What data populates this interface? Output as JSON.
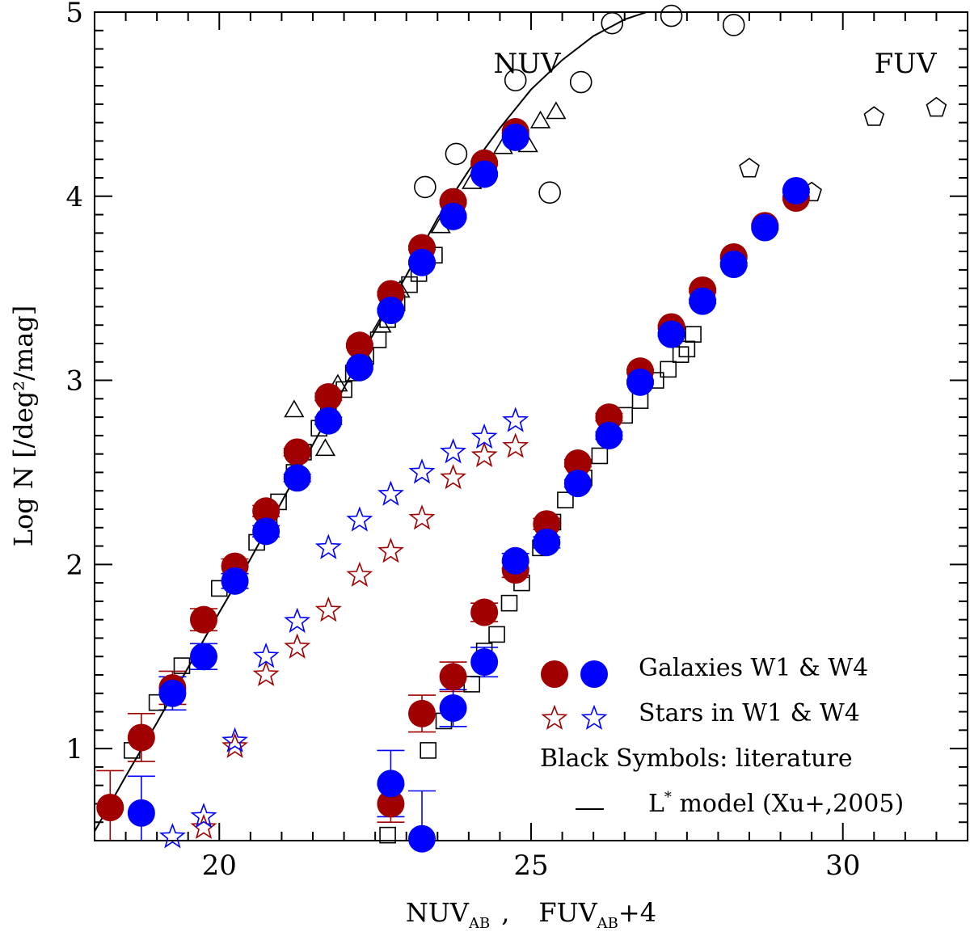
{
  "chart_data": {
    "type": "scatter",
    "title": "",
    "panel_labels": {
      "nuv": "NUV",
      "fuv": "FUV"
    },
    "xlabel": "NUV_AB , FUV_AB+4",
    "xlabel_parts": {
      "nuv": "NUV",
      "sub1": "AB",
      "sep": ",",
      "fuv": "FUV",
      "sub2": "AB",
      "offset": "+4"
    },
    "ylabel": "Log N [/deg²/mag]",
    "xlim": [
      18,
      32
    ],
    "ylim": [
      0.5,
      5
    ],
    "xticks": [
      20,
      25,
      30
    ],
    "yticks": [
      1,
      2,
      3,
      4,
      5
    ],
    "legend": {
      "position": "bottom-right",
      "entries": [
        {
          "label": "Galaxies W1 & W4",
          "symbol": "filled-circle",
          "colors": [
            "#a00000",
            "#0000ff"
          ]
        },
        {
          "label": "Stars in W1 & W4",
          "symbol": "open-star",
          "colors": [
            "#a00000",
            "#0000ff"
          ]
        },
        {
          "label": "Black Symbols: literature",
          "symbol": "none"
        },
        {
          "label": "L* model (Xu+,2005)",
          "symbol": "line",
          "label_main": "L",
          "label_sup": "*",
          "label_rest": " model (Xu+,2005)"
        }
      ]
    },
    "colors": {
      "red": "#a00000",
      "blue": "#0000ff",
      "black": "#000000"
    },
    "series": [
      {
        "name": "Galaxies W1 NUV",
        "marker": "filled-circle",
        "color": "#a00000",
        "points": [
          [
            18.25,
            0.68
          ],
          [
            18.75,
            1.06
          ],
          [
            19.25,
            1.33
          ],
          [
            19.75,
            1.7
          ],
          [
            20.25,
            1.99
          ],
          [
            20.75,
            2.29
          ],
          [
            21.25,
            2.61
          ],
          [
            21.75,
            2.91
          ],
          [
            22.25,
            3.19
          ],
          [
            22.75,
            3.47
          ],
          [
            23.25,
            3.72
          ],
          [
            23.75,
            3.97
          ],
          [
            24.25,
            4.18
          ],
          [
            24.75,
            4.35
          ]
        ],
        "yerr": [
          0.2,
          0.13,
          0.09,
          0.06,
          0.04,
          0.03,
          0.02,
          0.02,
          0.01,
          0.01,
          0.01,
          0.01,
          0.01,
          0.01
        ]
      },
      {
        "name": "Galaxies W4 NUV",
        "marker": "filled-circle",
        "color": "#0000ff",
        "points": [
          [
            18.75,
            0.65
          ],
          [
            19.25,
            1.3
          ],
          [
            19.75,
            1.5
          ],
          [
            20.25,
            1.91
          ],
          [
            20.75,
            2.18
          ],
          [
            21.25,
            2.47
          ],
          [
            21.75,
            2.78
          ],
          [
            22.25,
            3.07
          ],
          [
            22.75,
            3.38
          ],
          [
            23.25,
            3.64
          ],
          [
            23.75,
            3.89
          ],
          [
            24.25,
            4.12
          ],
          [
            24.75,
            4.32
          ]
        ],
        "yerr": [
          0.2,
          0.09,
          0.07,
          0.04,
          0.03,
          0.02,
          0.02,
          0.01,
          0.01,
          0.01,
          0.01,
          0.01,
          0.01
        ]
      },
      {
        "name": "Galaxies W1 FUV+4",
        "marker": "filled-circle",
        "color": "#a00000",
        "points": [
          [
            22.75,
            0.7
          ],
          [
            23.25,
            1.19
          ],
          [
            23.75,
            1.39
          ],
          [
            24.25,
            1.74
          ],
          [
            24.75,
            1.97
          ],
          [
            25.25,
            2.22
          ],
          [
            25.75,
            2.55
          ],
          [
            26.25,
            2.8
          ],
          [
            26.75,
            3.05
          ],
          [
            27.25,
            3.29
          ],
          [
            27.75,
            3.49
          ],
          [
            28.25,
            3.67
          ],
          [
            28.75,
            3.84
          ],
          [
            29.25,
            3.99
          ]
        ],
        "yerr": [
          0.1,
          0.1,
          0.08,
          0.05,
          0.04,
          0.03,
          0.02,
          0.02,
          0.01,
          0.01,
          0.01,
          0.01,
          0.01,
          0.01
        ]
      },
      {
        "name": "Galaxies W4 FUV+4",
        "marker": "filled-circle",
        "color": "#0000ff",
        "points": [
          [
            22.75,
            0.81
          ],
          [
            23.25,
            0.51
          ],
          [
            23.75,
            1.22
          ],
          [
            24.25,
            1.47
          ],
          [
            24.75,
            2.02
          ],
          [
            25.25,
            2.12
          ],
          [
            25.75,
            2.44
          ],
          [
            26.25,
            2.7
          ],
          [
            26.75,
            2.99
          ],
          [
            27.25,
            3.25
          ],
          [
            27.75,
            3.43
          ],
          [
            28.25,
            3.63
          ],
          [
            28.75,
            3.83
          ],
          [
            29.25,
            4.03
          ]
        ],
        "yerr": [
          0.18,
          0.26,
          0.1,
          0.08,
          0.04,
          0.03,
          0.02,
          0.02,
          0.01,
          0.01,
          0.01,
          0.01,
          0.01,
          0.01
        ]
      },
      {
        "name": "Stars W1",
        "marker": "open-star",
        "color": "#a00000",
        "points": [
          [
            19.75,
            0.57
          ],
          [
            20.25,
            1.01
          ],
          [
            20.75,
            1.4
          ],
          [
            21.25,
            1.55
          ],
          [
            21.75,
            1.75
          ],
          [
            22.25,
            1.94
          ],
          [
            22.75,
            2.07
          ],
          [
            23.25,
            2.25
          ],
          [
            23.75,
            2.47
          ],
          [
            24.25,
            2.59
          ],
          [
            24.75,
            2.64
          ]
        ]
      },
      {
        "name": "Stars W4",
        "marker": "open-star",
        "color": "#0000ff",
        "points": [
          [
            19.25,
            0.52
          ],
          [
            19.75,
            0.63
          ],
          [
            20.25,
            1.04
          ],
          [
            20.75,
            1.5
          ],
          [
            21.25,
            1.69
          ],
          [
            21.75,
            2.09
          ],
          [
            22.25,
            2.24
          ],
          [
            22.75,
            2.38
          ],
          [
            23.25,
            2.5
          ],
          [
            23.75,
            2.61
          ],
          [
            24.25,
            2.69
          ],
          [
            24.75,
            2.78
          ]
        ]
      },
      {
        "name": "Literature NUV squares",
        "marker": "open-square",
        "color": "#000000",
        "points": [
          [
            18.6,
            0.99
          ],
          [
            19.0,
            1.25
          ],
          [
            19.4,
            1.45
          ],
          [
            19.8,
            1.7
          ],
          [
            20.0,
            1.87
          ],
          [
            20.3,
            1.94
          ],
          [
            20.6,
            2.12
          ],
          [
            20.8,
            2.24
          ],
          [
            20.95,
            2.34
          ],
          [
            21.2,
            2.5
          ],
          [
            21.35,
            2.61
          ],
          [
            21.6,
            2.74
          ],
          [
            21.75,
            2.86
          ],
          [
            22.0,
            2.95
          ],
          [
            22.15,
            3.04
          ],
          [
            22.35,
            3.13
          ],
          [
            22.55,
            3.22
          ],
          [
            22.7,
            3.33
          ],
          [
            22.85,
            3.42
          ],
          [
            23.05,
            3.52
          ],
          [
            23.2,
            3.58
          ],
          [
            23.45,
            3.68
          ]
        ]
      },
      {
        "name": "Literature NUV triangles",
        "marker": "open-triangle",
        "color": "#000000",
        "points": [
          [
            21.2,
            2.84
          ],
          [
            21.7,
            2.63
          ],
          [
            21.9,
            2.98
          ],
          [
            22.3,
            3.14
          ],
          [
            22.6,
            3.3
          ],
          [
            22.9,
            3.49
          ],
          [
            23.3,
            3.67
          ],
          [
            23.55,
            3.84
          ],
          [
            23.8,
            3.95
          ],
          [
            24.05,
            4.08
          ],
          [
            24.3,
            4.15
          ],
          [
            24.55,
            4.27
          ],
          [
            24.95,
            4.28
          ],
          [
            25.15,
            4.41
          ],
          [
            25.4,
            4.46
          ]
        ]
      },
      {
        "name": "Literature NUV circles",
        "marker": "open-circle",
        "color": "#000000",
        "points": [
          [
            23.3,
            4.05
          ],
          [
            23.8,
            4.23
          ],
          [
            24.75,
            4.63
          ],
          [
            25.3,
            4.02
          ],
          [
            25.8,
            4.62
          ],
          [
            26.3,
            4.94
          ],
          [
            27.25,
            4.98
          ],
          [
            28.25,
            4.93
          ]
        ]
      },
      {
        "name": "Literature FUV squares",
        "marker": "open-square",
        "color": "#000000",
        "points": [
          [
            22.7,
            0.53
          ],
          [
            23.35,
            0.99
          ],
          [
            23.6,
            1.15
          ],
          [
            24.05,
            1.35
          ],
          [
            24.25,
            1.53
          ],
          [
            24.45,
            1.62
          ],
          [
            24.65,
            1.79
          ],
          [
            24.85,
            1.9
          ],
          [
            25.15,
            2.09
          ],
          [
            25.35,
            2.23
          ],
          [
            25.55,
            2.35
          ],
          [
            25.85,
            2.47
          ],
          [
            26.1,
            2.59
          ],
          [
            26.25,
            2.71
          ],
          [
            26.5,
            2.81
          ],
          [
            26.75,
            2.89
          ],
          [
            27.0,
            3.0
          ],
          [
            27.2,
            3.06
          ],
          [
            27.4,
            3.14
          ],
          [
            27.5,
            3.17
          ],
          [
            27.6,
            3.25
          ]
        ]
      },
      {
        "name": "Literature FUV pentagons",
        "marker": "open-pentagon",
        "color": "#000000",
        "points": [
          [
            28.5,
            4.15
          ],
          [
            29.5,
            4.02
          ],
          [
            30.5,
            4.43
          ],
          [
            31.5,
            4.48
          ]
        ]
      }
    ],
    "model_line": {
      "name": "L* model (Xu+,2005)",
      "color": "#000000",
      "points": [
        [
          18.0,
          0.55
        ],
        [
          18.5,
          0.85
        ],
        [
          19.0,
          1.14
        ],
        [
          19.5,
          1.44
        ],
        [
          20.0,
          1.74
        ],
        [
          20.5,
          2.03
        ],
        [
          21.0,
          2.34
        ],
        [
          21.5,
          2.65
        ],
        [
          22.0,
          2.96
        ],
        [
          22.5,
          3.27
        ],
        [
          23.0,
          3.57
        ],
        [
          23.5,
          3.88
        ],
        [
          24.0,
          4.14
        ],
        [
          24.5,
          4.37
        ],
        [
          25.0,
          4.58
        ],
        [
          25.5,
          4.74
        ],
        [
          26.0,
          4.87
        ],
        [
          26.5,
          4.96
        ],
        [
          26.85,
          5.0
        ]
      ]
    }
  }
}
